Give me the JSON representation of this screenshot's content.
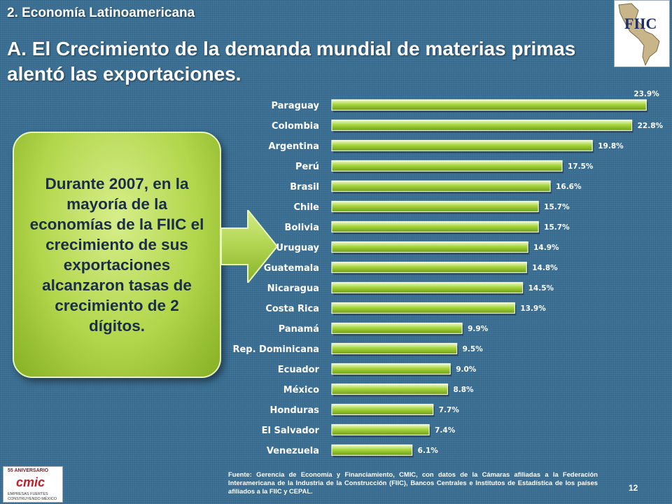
{
  "header": {
    "section_title": "2. Economía Latinoamericana",
    "main_title": "A. El Crecimiento de la demanda mundial de materias primas alentó las exportaciones."
  },
  "logo_fiic": {
    "text": "FIIC"
  },
  "callout": {
    "text": "Durante 2007, en la mayoría de la economías de la FIIC el crecimiento de sus exportaciones alcanzaron tasas de crecimiento de 2 dígitos."
  },
  "chart_data": {
    "type": "bar",
    "orientation": "horizontal",
    "title": "",
    "xlabel": "",
    "ylabel": "",
    "xlim": [
      0,
      25
    ],
    "grid": false,
    "legend": "none",
    "categories": [
      "Paraguay",
      "Colombia",
      "Argentina",
      "Perú",
      "Brasil",
      "Chile",
      "Bolivia",
      "Uruguay",
      "Guatemala",
      "Nicaragua",
      "Costa Rica",
      "Panamá",
      "Rep. Dominicana",
      "Ecuador",
      "México",
      "Honduras",
      "El Salvador",
      "Venezuela"
    ],
    "values": [
      23.9,
      22.8,
      19.8,
      17.5,
      16.6,
      15.7,
      15.7,
      14.9,
      14.8,
      14.5,
      13.9,
      9.9,
      9.5,
      9.0,
      8.8,
      7.7,
      7.4,
      6.1
    ],
    "value_labels": [
      "23.9%",
      "22.8%",
      "19.8%",
      "17.5%",
      "16.6%",
      "15.7%",
      "15.7%",
      "14.9%",
      "14.8%",
      "14.5%",
      "13.9%",
      "9.9%",
      "9.5%",
      "9.0%",
      "8.8%",
      "7.7%",
      "7.4%",
      "6.1%"
    ],
    "bar_color": "#9acd32"
  },
  "logo_cmic": {
    "anniversary": "55 ANIVERSARIO",
    "name": "cmic",
    "tagline1": "EMPRESAS FUERTES",
    "tagline2": "CONSTRUYENDO MÉXICO"
  },
  "footer": {
    "source": "Fuente: Gerencia de Economía y Financiamiento, CMIC, con datos de la Cámaras afiliadas a la Federación Interamericana de la Industria de la Construcción (FIIC), Bancos Centrales e Institutos de Estadística de los países afiliados a la FIIC y CEPAL.",
    "page_number": "12"
  }
}
